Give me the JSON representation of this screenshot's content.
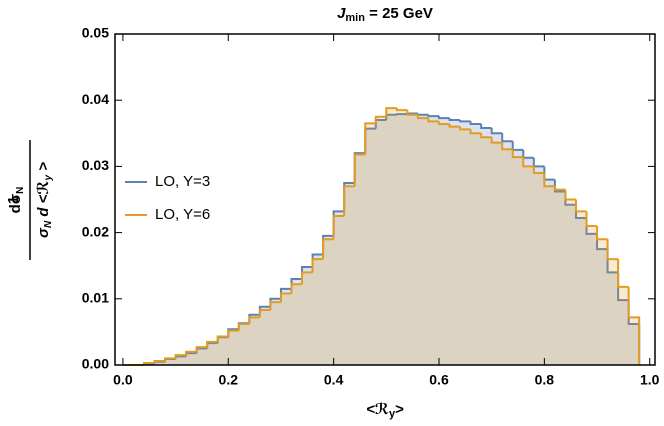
{
  "chart_data": {
    "type": "histogram",
    "title": [
      "J",
      "min",
      " = 25 GeV"
    ],
    "xlabel": [
      "<ℛ",
      "y",
      ">"
    ],
    "ylabel": {
      "factor": "1",
      "numerator": [
        "dσ",
        "N"
      ],
      "denominator": [
        "σ",
        "N",
        " d <",
        "ℛ",
        "y",
        " >"
      ]
    },
    "bins": [
      0,
      0.02,
      0.04,
      0.06,
      0.08,
      0.1,
      0.12,
      0.14,
      0.16,
      0.18,
      0.2,
      0.22,
      0.24,
      0.26,
      0.28,
      0.3,
      0.32,
      0.34,
      0.36,
      0.38,
      0.4,
      0.42,
      0.44,
      0.46,
      0.48,
      0.5,
      0.52,
      0.54,
      0.56,
      0.58,
      0.6,
      0.62,
      0.64,
      0.66,
      0.68,
      0.7,
      0.72,
      0.74,
      0.76,
      0.78,
      0.8,
      0.82,
      0.84,
      0.86,
      0.88,
      0.9,
      0.92,
      0.94,
      0.96,
      0.98
    ],
    "series": [
      {
        "name": "LO, Y=3",
        "color": "#5e81b5",
        "fill": "rgba(94,129,181,0.22)",
        "values": [
          0,
          0,
          0.0002,
          0.0005,
          0.0009,
          0.0013,
          0.0018,
          0.0025,
          0.0033,
          0.0042,
          0.0054,
          0.0063,
          0.0076,
          0.0088,
          0.01,
          0.0115,
          0.013,
          0.0148,
          0.0167,
          0.0195,
          0.0232,
          0.0275,
          0.032,
          0.0357,
          0.037,
          0.0378,
          0.0379,
          0.038,
          0.0378,
          0.0376,
          0.0373,
          0.037,
          0.0368,
          0.0364,
          0.0358,
          0.035,
          0.0338,
          0.0325,
          0.0313,
          0.03,
          0.028,
          0.0262,
          0.0242,
          0.0222,
          0.0198,
          0.0175,
          0.014,
          0.0098,
          0.0062
        ]
      },
      {
        "name": "LO, Y=6",
        "color": "#e19c24",
        "fill": "rgba(225,156,36,0.22)",
        "values": [
          0,
          0,
          0.0003,
          0.0006,
          0.001,
          0.0015,
          0.002,
          0.0027,
          0.0035,
          0.0043,
          0.0052,
          0.0062,
          0.0072,
          0.0083,
          0.0095,
          0.0108,
          0.0122,
          0.014,
          0.016,
          0.019,
          0.0225,
          0.027,
          0.0318,
          0.0365,
          0.0375,
          0.0388,
          0.0385,
          0.0378,
          0.0373,
          0.0368,
          0.0364,
          0.036,
          0.0356,
          0.035,
          0.0344,
          0.0336,
          0.0326,
          0.0314,
          0.03,
          0.029,
          0.027,
          0.0265,
          0.025,
          0.0232,
          0.021,
          0.019,
          0.016,
          0.0118,
          0.0072
        ]
      }
    ],
    "xlim": [
      -0.015,
      1.01
    ],
    "ylim": [
      0,
      0.05
    ],
    "xticks": [
      {
        "value": 0,
        "label": "0.0"
      },
      0.2,
      0.4,
      0.6,
      0.8,
      {
        "value": 1,
        "label": "1.0"
      }
    ],
    "yticks": [
      {
        "value": 0,
        "label": "0.00"
      },
      0.01,
      0.02,
      0.03,
      0.04,
      0.05
    ],
    "legend": "left"
  }
}
